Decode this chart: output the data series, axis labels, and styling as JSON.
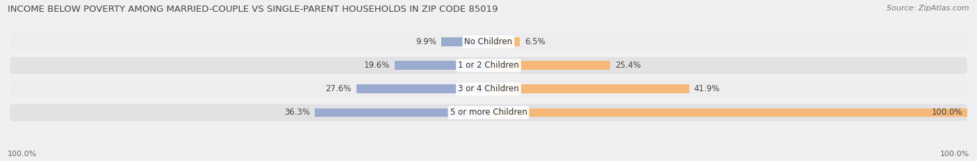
{
  "title": "INCOME BELOW POVERTY AMONG MARRIED-COUPLE VS SINGLE-PARENT HOUSEHOLDS IN ZIP CODE 85019",
  "source": "Source: ZipAtlas.com",
  "categories": [
    "No Children",
    "1 or 2 Children",
    "3 or 4 Children",
    "5 or more Children"
  ],
  "married_values": [
    9.9,
    19.6,
    27.6,
    36.3
  ],
  "single_values": [
    6.5,
    25.4,
    41.9,
    100.0
  ],
  "married_color": "#9aabcf",
  "single_color": "#f5b878",
  "row_bg_light": "#ededee",
  "row_bg_dark": "#e2e2e4",
  "title_fontsize": 9.5,
  "source_fontsize": 8,
  "label_fontsize": 8.5,
  "value_fontsize": 8.5,
  "axis_label_fontsize": 8,
  "legend_fontsize": 8.5,
  "max_value": 100.0,
  "left_axis_label": "100.0%",
  "right_axis_label": "100.0%"
}
